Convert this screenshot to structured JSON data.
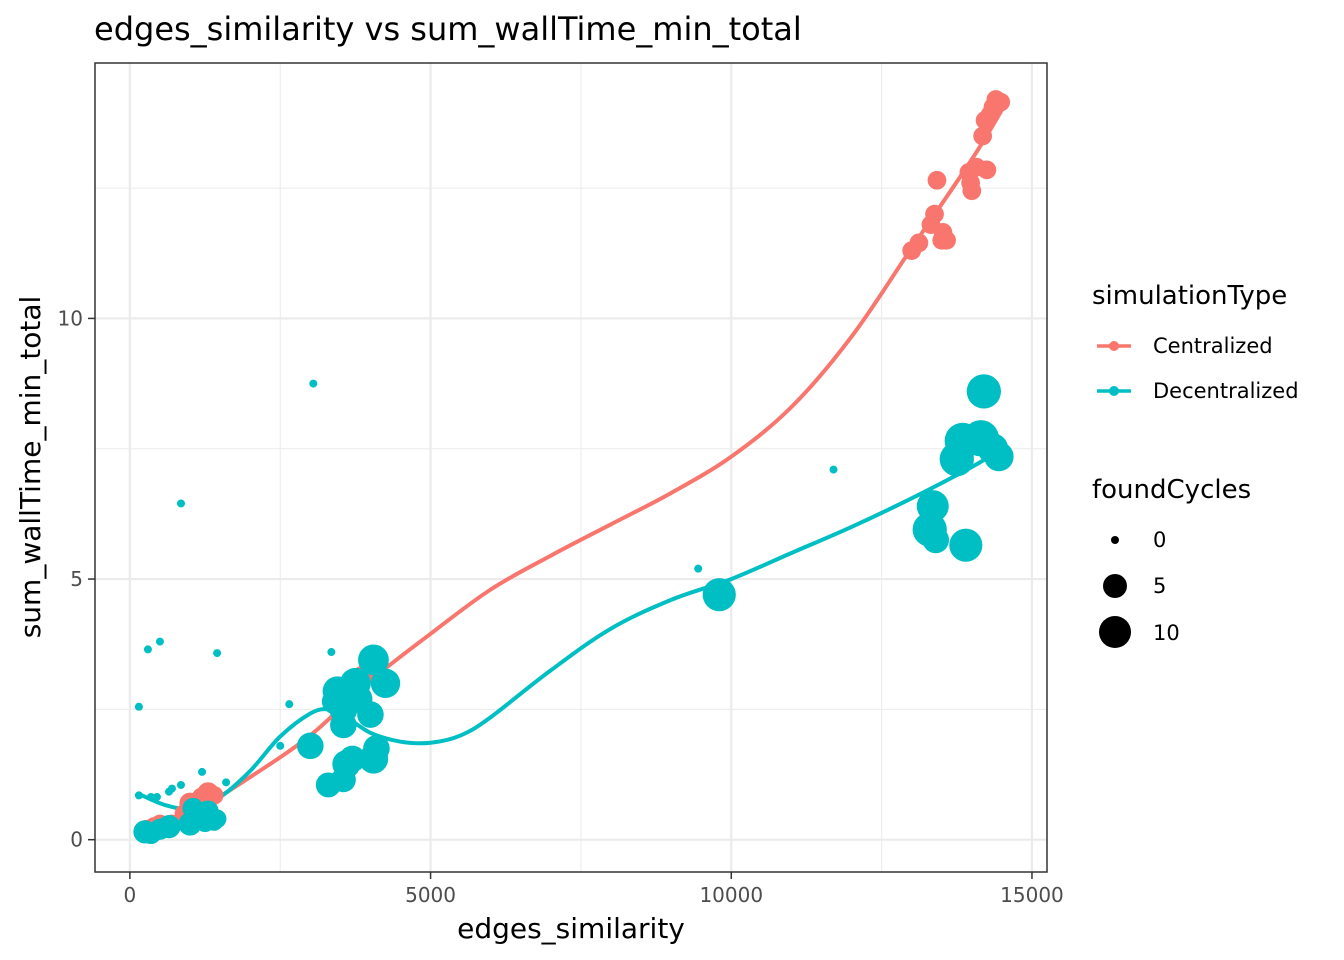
{
  "chart_data": {
    "type": "scatter",
    "title": "edges_similarity  vs  sum_wallTime_min_total",
    "xlabel": "edges_similarity",
    "ylabel": "sum_wallTime_min_total",
    "xlim": [
      -580,
      15250
    ],
    "ylim": [
      -0.62,
      14.9
    ],
    "x_ticks": [
      0,
      5000,
      10000,
      15000
    ],
    "y_ticks": [
      0,
      5,
      10
    ],
    "grid": true,
    "legend_position": "right",
    "colors": {
      "Centralized": "#F8766D",
      "Decentralized": "#00BFC4"
    },
    "color_legend": {
      "title": "simulationType",
      "entries": [
        "Centralized",
        "Decentralized"
      ]
    },
    "size_legend": {
      "title": "foundCycles",
      "entries": [
        {
          "label": "0",
          "value": 0
        },
        {
          "label": "5",
          "value": 5
        },
        {
          "label": "10",
          "value": 10
        }
      ]
    },
    "series": [
      {
        "name": "Centralized",
        "points": [
          [
            280,
            0.2,
            2
          ],
          [
            400,
            0.25,
            2
          ],
          [
            500,
            0.3,
            2
          ],
          [
            600,
            0.22,
            2
          ],
          [
            700,
            0.3,
            2
          ],
          [
            900,
            0.5,
            2
          ],
          [
            1000,
            0.7,
            3
          ],
          [
            1100,
            0.55,
            2
          ],
          [
            1200,
            0.8,
            3
          ],
          [
            1300,
            0.9,
            3
          ],
          [
            1400,
            0.85,
            2
          ],
          [
            3450,
            2.6,
            2
          ],
          [
            3550,
            2.75,
            2
          ],
          [
            3650,
            2.9,
            3
          ],
          [
            3750,
            3.05,
            2
          ],
          [
            3850,
            3.15,
            2
          ],
          [
            3950,
            3.25,
            2
          ],
          [
            4050,
            3.4,
            2
          ],
          [
            4150,
            3.35,
            2
          ],
          [
            13000,
            11.3,
            2
          ],
          [
            13120,
            11.45,
            2
          ],
          [
            13320,
            11.8,
            2
          ],
          [
            13380,
            12.0,
            2
          ],
          [
            13420,
            12.65,
            2
          ],
          [
            13500,
            11.5,
            2
          ],
          [
            13520,
            11.65,
            2
          ],
          [
            13580,
            11.5,
            2
          ],
          [
            13950,
            12.8,
            2
          ],
          [
            13980,
            12.6,
            2
          ],
          [
            14000,
            12.45,
            2
          ],
          [
            14080,
            12.9,
            2
          ],
          [
            14250,
            12.85,
            2
          ],
          [
            14180,
            13.5,
            2
          ],
          [
            14220,
            13.8,
            2
          ],
          [
            14300,
            13.9,
            2
          ],
          [
            14350,
            14.05,
            2
          ],
          [
            14400,
            14.2,
            2
          ],
          [
            14480,
            14.15,
            2
          ]
        ],
        "trend": [
          [
            300,
            0.1
          ],
          [
            1000,
            0.48
          ],
          [
            2000,
            1.2
          ],
          [
            3000,
            2.0
          ],
          [
            4000,
            3.05
          ],
          [
            5000,
            3.95
          ],
          [
            6000,
            4.8
          ],
          [
            7000,
            5.45
          ],
          [
            8000,
            6.05
          ],
          [
            9000,
            6.65
          ],
          [
            10000,
            7.35
          ],
          [
            11000,
            8.3
          ],
          [
            12000,
            9.65
          ],
          [
            13000,
            11.35
          ],
          [
            14000,
            13.05
          ],
          [
            14500,
            14.0
          ]
        ]
      },
      {
        "name": "Decentralized",
        "points": [
          [
            150,
            0.85,
            0
          ],
          [
            150,
            2.55,
            0
          ],
          [
            300,
            3.65,
            0
          ],
          [
            500,
            3.8,
            0
          ],
          [
            350,
            0.82,
            0
          ],
          [
            450,
            0.82,
            0
          ],
          [
            650,
            0.92,
            0
          ],
          [
            700,
            0.98,
            0
          ],
          [
            850,
            1.05,
            0
          ],
          [
            850,
            6.45,
            0
          ],
          [
            1200,
            1.3,
            0
          ],
          [
            1450,
            3.58,
            0
          ],
          [
            1600,
            1.1,
            0
          ],
          [
            250,
            0.15,
            4
          ],
          [
            350,
            0.12,
            3
          ],
          [
            500,
            0.2,
            3
          ],
          [
            650,
            0.25,
            4
          ],
          [
            1000,
            0.3,
            4
          ],
          [
            1100,
            0.45,
            3
          ],
          [
            1250,
            0.35,
            3
          ],
          [
            1400,
            0.35,
            2
          ],
          [
            1050,
            0.6,
            3
          ],
          [
            1300,
            0.55,
            3
          ],
          [
            1450,
            0.4,
            2
          ],
          [
            2500,
            1.8,
            0
          ],
          [
            2650,
            2.6,
            0
          ],
          [
            3050,
            8.75,
            0
          ],
          [
            3350,
            3.6,
            0
          ],
          [
            3000,
            1.8,
            6
          ],
          [
            3300,
            1.05,
            5
          ],
          [
            3400,
            2.65,
            5
          ],
          [
            3450,
            2.85,
            8
          ],
          [
            3550,
            2.5,
            7
          ],
          [
            3550,
            2.2,
            6
          ],
          [
            3550,
            1.15,
            5
          ],
          [
            3600,
            1.45,
            7
          ],
          [
            3700,
            1.55,
            6
          ],
          [
            3750,
            3.0,
            9
          ],
          [
            3800,
            2.7,
            7
          ],
          [
            4000,
            2.4,
            6
          ],
          [
            4050,
            3.45,
            9
          ],
          [
            4100,
            1.75,
            6
          ],
          [
            4050,
            1.55,
            8
          ],
          [
            4250,
            3.0,
            8
          ],
          [
            9450,
            5.2,
            0
          ],
          [
            9800,
            4.7,
            11
          ],
          [
            11700,
            7.1,
            0
          ],
          [
            13300,
            5.95,
            12
          ],
          [
            13350,
            6.4,
            10
          ],
          [
            13400,
            5.75,
            6
          ],
          [
            13750,
            7.3,
            12
          ],
          [
            13850,
            7.65,
            14
          ],
          [
            13900,
            5.65,
            11
          ],
          [
            14150,
            7.7,
            14
          ],
          [
            14200,
            8.6,
            12
          ],
          [
            14350,
            7.5,
            9
          ],
          [
            14450,
            7.35,
            8
          ]
        ],
        "trend": [
          [
            200,
            0.85
          ],
          [
            600,
            0.66
          ],
          [
            1000,
            0.6
          ],
          [
            1500,
            0.82
          ],
          [
            2000,
            1.32
          ],
          [
            2500,
            1.98
          ],
          [
            3000,
            2.42
          ],
          [
            3300,
            2.5
          ],
          [
            3600,
            2.35
          ],
          [
            4000,
            2.05
          ],
          [
            4500,
            1.88
          ],
          [
            5000,
            1.86
          ],
          [
            5500,
            2.0
          ],
          [
            6000,
            2.35
          ],
          [
            7000,
            3.25
          ],
          [
            8000,
            4.05
          ],
          [
            9000,
            4.6
          ],
          [
            10000,
            5.0
          ],
          [
            11000,
            5.5
          ],
          [
            12000,
            6.0
          ],
          [
            13000,
            6.55
          ],
          [
            14000,
            7.15
          ],
          [
            14500,
            7.5
          ]
        ]
      }
    ]
  }
}
